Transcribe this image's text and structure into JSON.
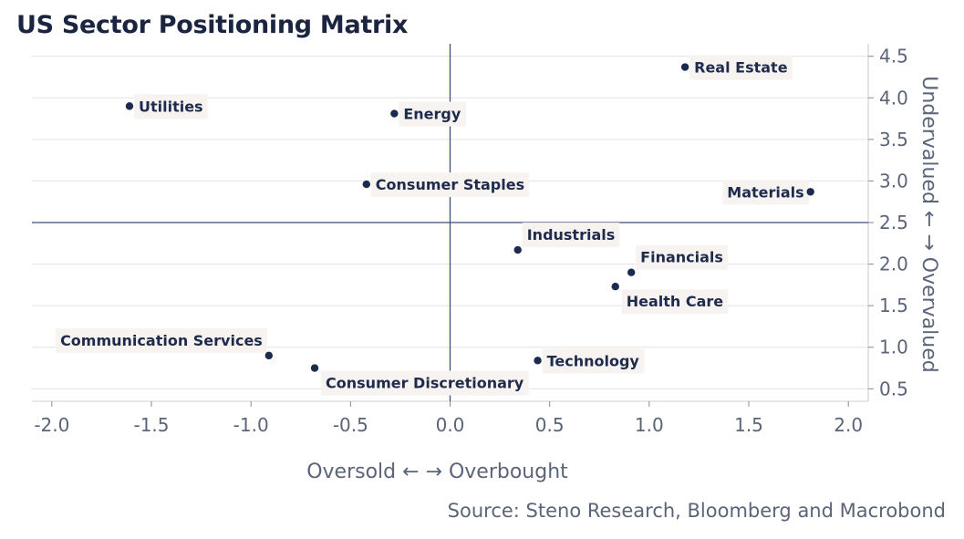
{
  "chart_data": {
    "type": "scatter",
    "title": "US Sector Positioning Matrix",
    "xlabel": "Oversold ← → Overbought",
    "ylabel": "Undervalued ← → Overvalued",
    "source": "Source: Steno Research, Bloomberg and Macrobond",
    "xlim": [
      -2.1,
      2.1
    ],
    "ylim": [
      0.35,
      4.65
    ],
    "xticks": [
      -2.0,
      -1.5,
      -1.0,
      -0.5,
      0.0,
      0.5,
      1.0,
      1.5,
      2.0
    ],
    "yticks": [
      0.5,
      1.0,
      1.5,
      2.0,
      2.5,
      3.0,
      3.5,
      4.0,
      4.5
    ],
    "xtick_labels": [
      "-2.0",
      "-1.5",
      "-1.0",
      "-0.5",
      "0.0",
      "0.5",
      "1.0",
      "1.5",
      "2.0"
    ],
    "ytick_labels": [
      "0.5",
      "1.0",
      "1.5",
      "2.0",
      "2.5",
      "3.0",
      "3.5",
      "4.0",
      "4.5"
    ],
    "hline": 2.5,
    "vline": 0.0,
    "grid": "horizontal",
    "colors": {
      "point": "#1b2b4d",
      "label": "#1f2b4d",
      "grid": "#e3e3e3",
      "refline": "#3d4e78",
      "label_bg": "#f7f3f0"
    },
    "points": [
      {
        "name": "Real Estate",
        "x": 1.18,
        "y": 4.37,
        "pos": "right"
      },
      {
        "name": "Utilities",
        "x": -1.61,
        "y": 3.9,
        "pos": "right"
      },
      {
        "name": "Energy",
        "x": -0.28,
        "y": 3.81,
        "pos": "right"
      },
      {
        "name": "Consumer Staples",
        "x": -0.42,
        "y": 2.96,
        "pos": "right"
      },
      {
        "name": "Materials",
        "x": 1.81,
        "y": 2.87,
        "pos": "left"
      },
      {
        "name": "Industrials",
        "x": 0.34,
        "y": 2.17,
        "pos": "above-right"
      },
      {
        "name": "Financials",
        "x": 0.91,
        "y": 1.9,
        "pos": "above-right"
      },
      {
        "name": "Health Care",
        "x": 0.83,
        "y": 1.73,
        "pos": "below-right"
      },
      {
        "name": "Communication Services",
        "x": -0.91,
        "y": 0.9,
        "pos": "above-left"
      },
      {
        "name": "Technology",
        "x": 0.44,
        "y": 0.84,
        "pos": "right"
      },
      {
        "name": "Consumer Discretionary",
        "x": -0.68,
        "y": 0.75,
        "pos": "below-right"
      }
    ]
  }
}
